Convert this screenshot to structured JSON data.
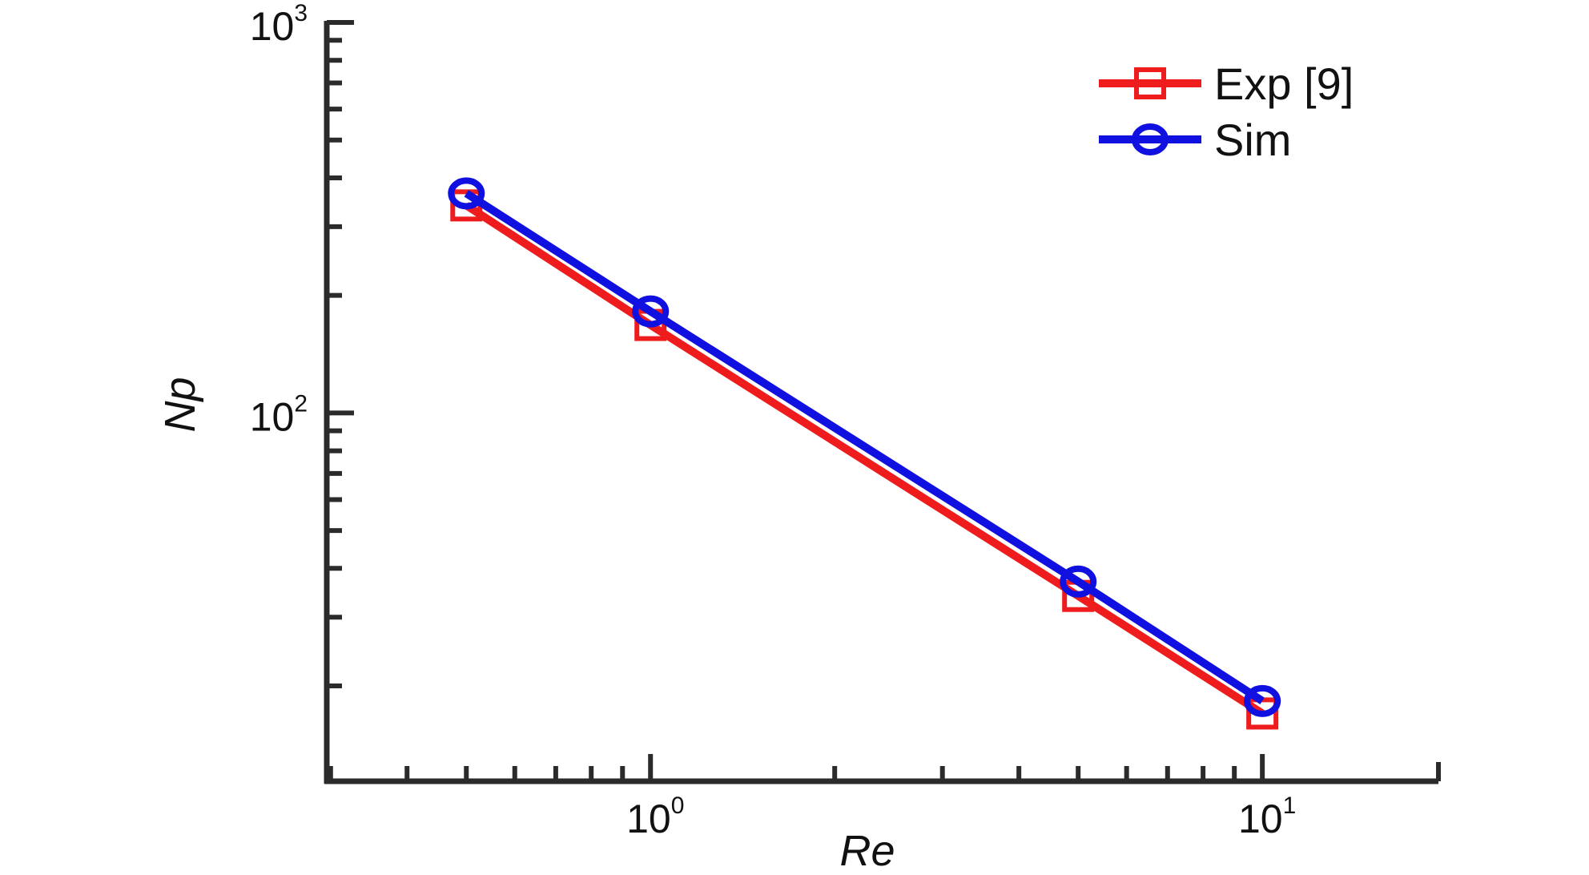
{
  "chart_data": {
    "type": "line",
    "xlabel": "Re",
    "ylabel": "Np",
    "xscale": "log",
    "yscale": "log",
    "xlim": [
      0.2957,
      19.4
    ],
    "ylim": [
      11.4,
      1000
    ],
    "xticks": [
      {
        "value": 1,
        "base": "10",
        "exp": "0"
      },
      {
        "value": 10,
        "base": "10",
        "exp": "1"
      }
    ],
    "yticks": [
      {
        "value": 100,
        "base": "10",
        "exp": "2"
      },
      {
        "value": 1000,
        "base": "10",
        "exp": "3"
      }
    ],
    "grid": false,
    "legend_position": "top-right",
    "series": [
      {
        "name": "Exp [9]",
        "color": "#ee1c1c",
        "marker": "square",
        "points": [
          {
            "x": 0.5,
            "y": 340
          },
          {
            "x": 1,
            "y": 168
          },
          {
            "x": 5,
            "y": 34
          },
          {
            "x": 10,
            "y": 17
          }
        ]
      },
      {
        "name": "Sim",
        "color": "#1010e0",
        "marker": "circle",
        "points": [
          {
            "x": 0.5,
            "y": 365
          },
          {
            "x": 1,
            "y": 182
          },
          {
            "x": 5,
            "y": 37
          },
          {
            "x": 10,
            "y": 18.3
          }
        ]
      }
    ]
  }
}
